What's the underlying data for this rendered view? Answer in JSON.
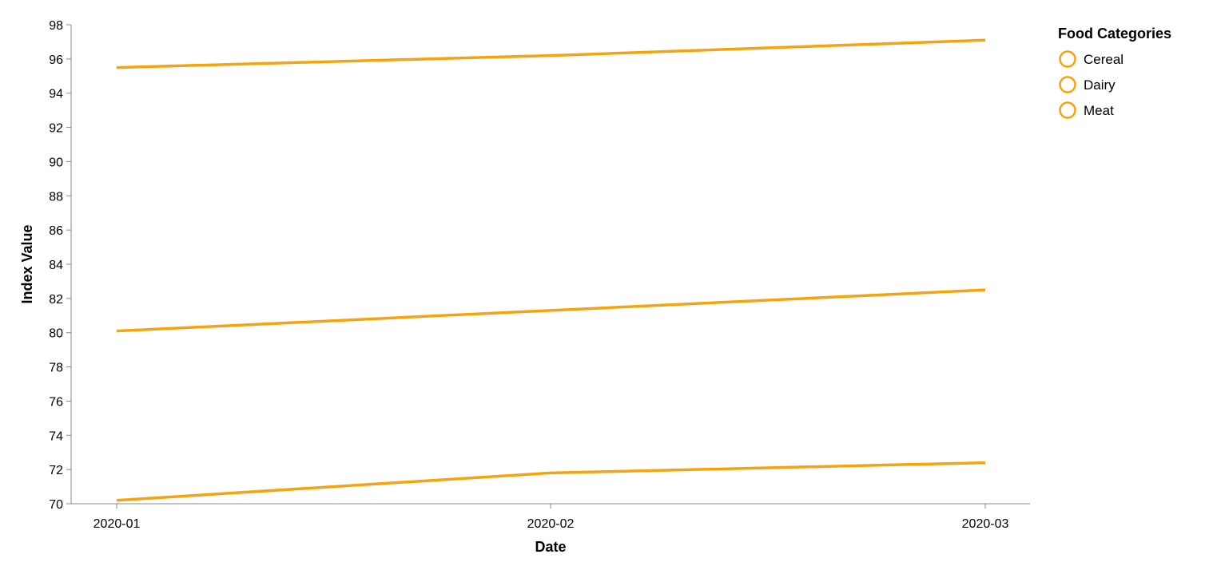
{
  "chart_data": {
    "type": "line",
    "x": [
      "2020-01",
      "2020-02",
      "2020-03"
    ],
    "series": [
      {
        "name": "Cereal",
        "values": [
          95.5,
          96.2,
          97.1
        ],
        "color": "#F5A30F"
      },
      {
        "name": "Dairy",
        "values": [
          80.1,
          81.3,
          82.5
        ],
        "color": "#F5A30F"
      },
      {
        "name": "Meat",
        "values": [
          70.2,
          71.8,
          72.4
        ],
        "color": "#F5A30F"
      }
    ],
    "xlabel": "Date",
    "ylabel": "Index Value",
    "ylim": [
      70,
      98
    ],
    "yticks": [
      70,
      72,
      74,
      76,
      78,
      80,
      82,
      84,
      86,
      88,
      90,
      92,
      94,
      96,
      98
    ],
    "xticks": [
      "2020-01",
      "2020-02",
      "2020-03"
    ],
    "grid": false,
    "legend": {
      "title": "Food Categories",
      "placement": "top-right",
      "symbol": "circle-outline"
    }
  }
}
